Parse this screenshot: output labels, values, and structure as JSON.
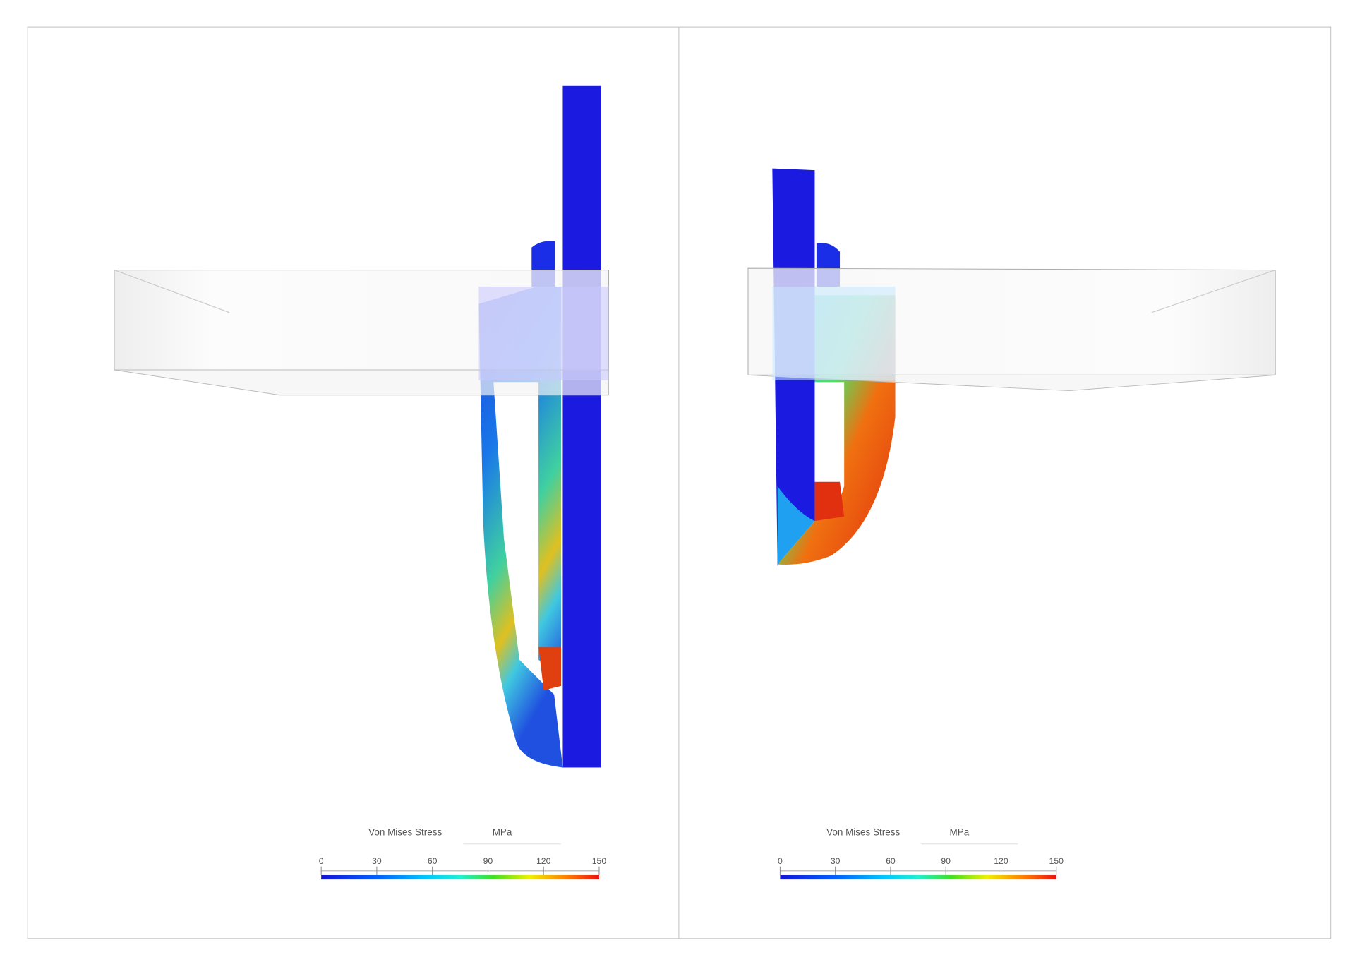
{
  "panels": [
    {
      "legend": {
        "title": "Von Mises Stress",
        "unit": "MPa",
        "range": [
          0,
          150
        ],
        "ticks": [
          0,
          30,
          60,
          90,
          120,
          150
        ]
      }
    },
    {
      "legend": {
        "title": "Von Mises Stress",
        "unit": "MPa",
        "range": [
          0,
          150
        ],
        "ticks": [
          0,
          30,
          60,
          90,
          120,
          150
        ]
      }
    }
  ]
}
